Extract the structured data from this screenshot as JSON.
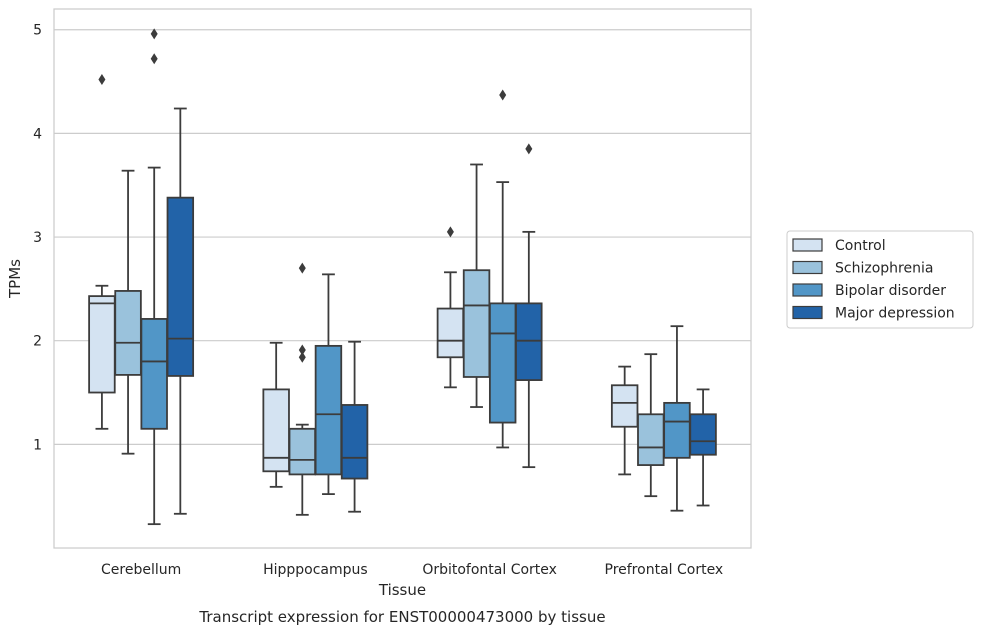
{
  "chart_data": {
    "type": "box",
    "title": "",
    "caption": "Transcript expression for ENST00000473000 by tissue",
    "xlabel": "Tissue",
    "ylabel": "TPMs",
    "ylim": [
      0.0,
      5.2
    ],
    "yticks": [
      1,
      2,
      3,
      4,
      5
    ],
    "grid": true,
    "legend_position": "right",
    "categories": [
      "Cerebellum",
      "Hipppocampus",
      "Orbitofontal Cortex",
      "Prefrontal Cortex"
    ],
    "series": [
      {
        "name": "Control",
        "color": "#d4e3f2",
        "boxes": [
          {
            "whislo": 1.15,
            "q1": 1.5,
            "med": 2.36,
            "q3": 2.43,
            "whishi": 2.53,
            "fliers": [
              4.52
            ]
          },
          {
            "whislo": 0.59,
            "q1": 0.74,
            "med": 0.87,
            "q3": 1.53,
            "whishi": 1.98,
            "fliers": []
          },
          {
            "whislo": 1.55,
            "q1": 1.84,
            "med": 2.0,
            "q3": 2.31,
            "whishi": 2.66,
            "fliers": [
              3.05
            ]
          },
          {
            "whislo": 0.71,
            "q1": 1.17,
            "med": 1.4,
            "q3": 1.57,
            "whishi": 1.75,
            "fliers": []
          }
        ]
      },
      {
        "name": "Schizophrenia",
        "color": "#9ac2dc",
        "boxes": [
          {
            "whislo": 0.91,
            "q1": 1.67,
            "med": 1.98,
            "q3": 2.48,
            "whishi": 3.64,
            "fliers": []
          },
          {
            "whislo": 0.32,
            "q1": 0.71,
            "med": 0.85,
            "q3": 1.15,
            "whishi": 1.19,
            "fliers": [
              1.84,
              1.91,
              2.7
            ]
          },
          {
            "whislo": 1.36,
            "q1": 1.65,
            "med": 2.34,
            "q3": 2.68,
            "whishi": 3.7,
            "fliers": []
          },
          {
            "whislo": 0.5,
            "q1": 0.8,
            "med": 0.97,
            "q3": 1.29,
            "whishi": 1.87,
            "fliers": []
          }
        ]
      },
      {
        "name": "Bipolar disorder",
        "color": "#5196c7",
        "boxes": [
          {
            "whislo": 0.23,
            "q1": 1.15,
            "med": 1.8,
            "q3": 2.21,
            "whishi": 3.67,
            "fliers": [
              4.72,
              4.96
            ]
          },
          {
            "whislo": 0.52,
            "q1": 0.71,
            "med": 1.29,
            "q3": 1.95,
            "whishi": 2.64,
            "fliers": []
          },
          {
            "whislo": 0.97,
            "q1": 1.21,
            "med": 2.07,
            "q3": 2.36,
            "whishi": 3.53,
            "fliers": [
              4.37
            ]
          },
          {
            "whislo": 0.36,
            "q1": 0.87,
            "med": 1.22,
            "q3": 1.4,
            "whishi": 2.14,
            "fliers": []
          }
        ]
      },
      {
        "name": "Major depression",
        "color": "#2263a8",
        "boxes": [
          {
            "whislo": 0.33,
            "q1": 1.66,
            "med": 2.02,
            "q3": 3.38,
            "whishi": 4.24,
            "fliers": []
          },
          {
            "whislo": 0.35,
            "q1": 0.67,
            "med": 0.87,
            "q3": 1.38,
            "whishi": 1.99,
            "fliers": []
          },
          {
            "whislo": 0.78,
            "q1": 1.62,
            "med": 2.0,
            "q3": 2.36,
            "whishi": 3.05,
            "fliers": [
              3.85
            ]
          },
          {
            "whislo": 0.41,
            "q1": 0.9,
            "med": 1.03,
            "q3": 1.29,
            "whishi": 1.53,
            "fliers": []
          }
        ]
      }
    ]
  }
}
